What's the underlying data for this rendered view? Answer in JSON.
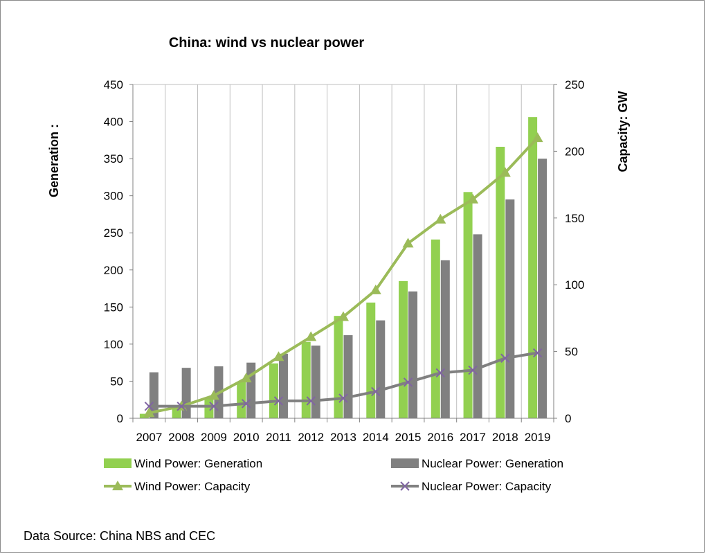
{
  "chart_data": {
    "type": "bar",
    "title": "China: wind vs nuclear power",
    "ylabel_left": "Generation :",
    "ylabel_right": "Capacity: GW",
    "categories": [
      "2007",
      "2008",
      "2009",
      "2010",
      "2011",
      "2012",
      "2013",
      "2014",
      "2015",
      "2016",
      "2017",
      "2018",
      "2019"
    ],
    "ylim_left": [
      0,
      450
    ],
    "yticks_left": [
      0,
      50,
      100,
      150,
      200,
      250,
      300,
      350,
      400,
      450
    ],
    "ylim_right": [
      0,
      250
    ],
    "yticks_right": [
      0,
      50,
      100,
      150,
      200,
      250
    ],
    "grid": "vertical",
    "legend_position": "bottom",
    "series": [
      {
        "name": "Wind Power: Generation",
        "type": "bar",
        "axis": "left",
        "color": "#92d050",
        "values": [
          6,
          13,
          28,
          49,
          74,
          103,
          138,
          156,
          185,
          241,
          305,
          366,
          406
        ]
      },
      {
        "name": "Nuclear Power: Generation",
        "type": "bar",
        "axis": "left",
        "color": "#808080",
        "values": [
          62,
          68,
          70,
          75,
          87,
          98,
          112,
          132,
          171,
          213,
          248,
          295,
          350
        ]
      },
      {
        "name": "Wind Power: Capacity",
        "type": "line",
        "axis": "right",
        "color": "#9bbb59",
        "marker": "triangle",
        "values": [
          4,
          9,
          17,
          30,
          46,
          61,
          76,
          96,
          131,
          149,
          164,
          184,
          210
        ]
      },
      {
        "name": "Nuclear Power: Capacity",
        "type": "line",
        "axis": "right",
        "color": "#808080",
        "marker": "x",
        "values": [
          9,
          9,
          9,
          11,
          13,
          13,
          15,
          20,
          27,
          34,
          36,
          45,
          49
        ]
      }
    ]
  },
  "source_note": "Data Source: China NBS and CEC"
}
